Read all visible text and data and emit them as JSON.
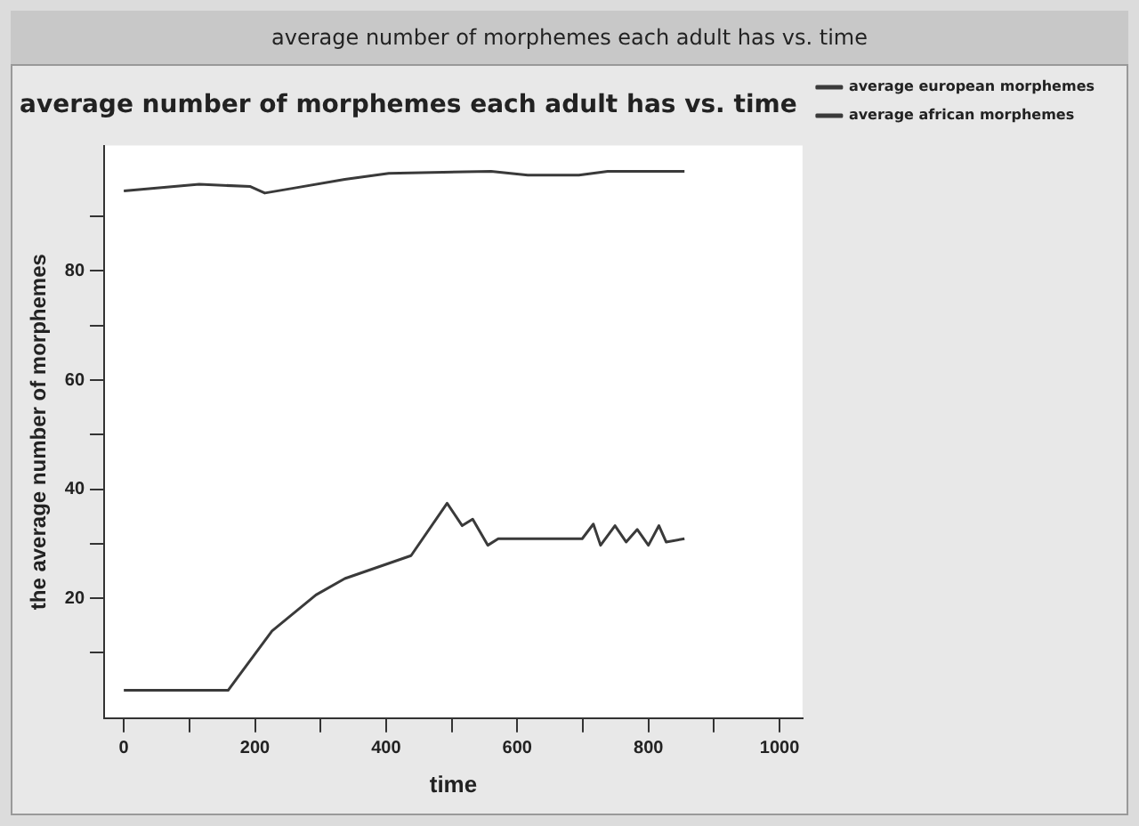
{
  "chart_data": {
    "type": "line",
    "title": "average number of morphemes each adult has vs. time",
    "xlabel": "time",
    "ylabel": "the average number of morphemes",
    "annotations": [
      "average number of morphemes each adult has vs. time"
    ],
    "xlim": [
      -30,
      1035
    ],
    "xticks": [
      0,
      {
        "value": 100,
        "label": null
      },
      200,
      {
        "value": 300,
        "label": null
      },
      400,
      {
        "value": 500,
        "label": null
      },
      600,
      {
        "value": 700,
        "label": null
      },
      800,
      {
        "value": 900,
        "label": null
      },
      1000
    ],
    "ylim": [
      -2,
      103
    ],
    "yticks": [
      {
        "value": 10,
        "label": null
      },
      20,
      {
        "value": 30,
        "label": null
      },
      40,
      {
        "value": 50,
        "label": null
      },
      60,
      {
        "value": 70,
        "label": null
      },
      80,
      {
        "value": 90,
        "label": null
      }
    ],
    "grid": false,
    "legend": "top right",
    "marker": "none",
    "line_style": "solid",
    "series": [
      {
        "name": "average european morphemes",
        "color": "#3a3a3a",
        "x": [
          0,
          115,
          193,
          215,
          259,
          337,
          404,
          560,
          616,
          694,
          738,
          855
        ],
        "values": [
          94.7,
          95.9,
          95.5,
          94.3,
          95.2,
          96.8,
          97.9,
          98.3,
          97.6,
          97.6,
          98.3,
          98.3
        ]
      },
      {
        "name": "average african morphemes",
        "color": "#3a3a3a",
        "x": [
          0,
          159,
          226,
          293,
          337,
          438,
          493,
          516,
          532,
          555,
          571,
          699,
          716,
          727,
          749,
          766,
          783,
          800,
          816,
          827,
          855
        ],
        "values": [
          3.1,
          3.1,
          14.0,
          20.6,
          23.6,
          27.8,
          37.4,
          33.3,
          34.5,
          29.7,
          30.9,
          30.9,
          33.6,
          29.7,
          33.3,
          30.3,
          32.6,
          29.7,
          33.3,
          30.3,
          30.9
        ]
      }
    ]
  }
}
